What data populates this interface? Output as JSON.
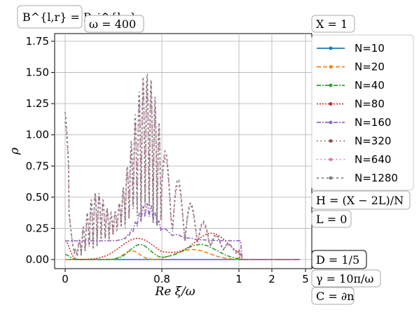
{
  "chart_data": {
    "type": "scatter",
    "xlabel": "Re ξ/ω",
    "ylabel": "ρ",
    "ylim": [
      0,
      1.75
    ],
    "x_ticks": [
      {
        "value": 0,
        "label": "0"
      },
      {
        "value": 0.8,
        "label": "0.8"
      },
      {
        "value": 1,
        "label": "1"
      },
      {
        "value": 2,
        "label": "2"
      },
      {
        "value": 5,
        "label": "5"
      }
    ],
    "y_ticks": [
      "0.00",
      "0.25",
      "0.50",
      "0.75",
      "1.00",
      "1.25",
      "1.50",
      "1.75"
    ],
    "grid": true,
    "legend_title": "X = 1",
    "series": [
      {
        "name": "N=10",
        "color": "#1f77b4",
        "style": "solid",
        "marker": "circle"
      },
      {
        "name": "N=20",
        "color": "#ff7f0e",
        "style": "dashed",
        "marker": "circle"
      },
      {
        "name": "N=40",
        "color": "#2ca02c",
        "style": "dashdot",
        "marker": "circle"
      },
      {
        "name": "N=80",
        "color": "#d62728",
        "style": "dotted",
        "marker": "circle"
      },
      {
        "name": "N=160",
        "color": "#9467bd",
        "style": "dashdot",
        "marker": "circle"
      },
      {
        "name": "N=320",
        "color": "#8c564b",
        "style": "dotted-sparse",
        "marker": "circle"
      },
      {
        "name": "N=640",
        "color": "#e377c2",
        "style": "dotted-sparse",
        "marker": "circle"
      },
      {
        "name": "N=1280",
        "color": "#7f7f7f",
        "style": "dashed-sparse",
        "marker": "circle"
      }
    ],
    "annotations": {
      "top_left": "B^{l,r} = B_j^{l,r}",
      "omega": "ω = 400",
      "right_1": "H = (X − 2L)/N",
      "right_2": "L = 0",
      "right_3": "D = 1/5",
      "right_4": "γ = 10π/ω",
      "right_5": "C = ∂n"
    }
  }
}
